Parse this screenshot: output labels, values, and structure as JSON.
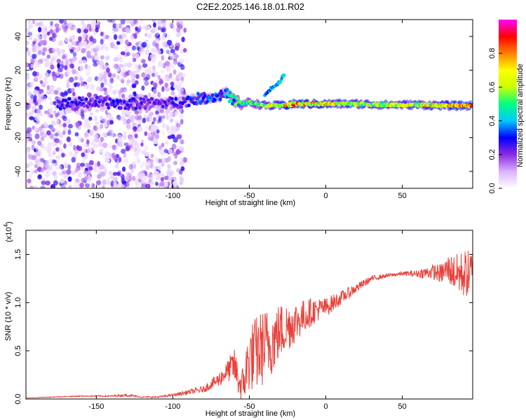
{
  "title": "C2E2.2025.146.18.01.R02",
  "chart_data": [
    {
      "type": "heatmap",
      "xlabel": "Height of straight line (km)",
      "ylabel": "Frequency (Hz)",
      "xlim": [
        -196,
        96
      ],
      "ylim": [
        -50,
        50
      ],
      "xticks": [
        -150,
        -100,
        -50,
        0,
        50
      ],
      "yticks": [
        -40,
        -20,
        0,
        20,
        40
      ],
      "colorbar": {
        "label": "Normalized spectral amplitude",
        "range": [
          0,
          1
        ],
        "ticks": [
          0.0,
          0.2,
          0.4,
          0.6,
          0.8
        ],
        "tick_labels": [
          "0.0",
          "0.2",
          "0.4",
          "0.6",
          "0.8"
        ],
        "colors": [
          "#ffffff",
          "#d9b3ff",
          "#8a2be2",
          "#0000ff",
          "#00c8ff",
          "#00ff80",
          "#c8ff00",
          "#ffff00",
          "#ff8000",
          "#ff0000",
          "#ff00ff"
        ]
      },
      "noise_region_x": [
        -196,
        -92
      ],
      "trace": [
        {
          "x": -170,
          "y": 0.5,
          "amp": 0.3
        },
        {
          "x": -150,
          "y": 1.0,
          "amp": 0.28
        },
        {
          "x": -130,
          "y": 0.0,
          "amp": 0.3
        },
        {
          "x": -110,
          "y": 0.5,
          "amp": 0.25
        },
        {
          "x": -95,
          "y": 1.0,
          "amp": 0.3
        },
        {
          "x": -85,
          "y": 3.0,
          "amp": 0.35
        },
        {
          "x": -75,
          "y": 4.0,
          "amp": 0.4
        },
        {
          "x": -65,
          "y": 6.0,
          "amp": 0.4
        },
        {
          "x": -60,
          "y": 2.0,
          "amp": 0.55
        },
        {
          "x": -55,
          "y": 0.0,
          "amp": 0.6
        },
        {
          "x": -50,
          "y": 1.0,
          "amp": 0.6
        },
        {
          "x": -40,
          "y": -1.0,
          "amp": 0.7
        },
        {
          "x": -30,
          "y": -1.0,
          "amp": 0.8
        },
        {
          "x": -20,
          "y": 0.0,
          "amp": 0.9
        },
        {
          "x": -10,
          "y": 0.0,
          "amp": 0.85
        },
        {
          "x": 0,
          "y": 0.0,
          "amp": 0.8
        },
        {
          "x": 20,
          "y": 0.0,
          "amp": 0.75
        },
        {
          "x": 40,
          "y": -0.5,
          "amp": 0.7
        },
        {
          "x": 60,
          "y": -0.5,
          "amp": 0.75
        },
        {
          "x": 80,
          "y": -1.0,
          "amp": 0.85
        },
        {
          "x": 90,
          "y": -1.0,
          "amp": 0.9
        }
      ],
      "branch": [
        {
          "x": -40,
          "y": 5,
          "amp": 0.45
        },
        {
          "x": -35,
          "y": 10,
          "amp": 0.45
        },
        {
          "x": -30,
          "y": 13,
          "amp": 0.5
        },
        {
          "x": -27,
          "y": 18,
          "amp": 0.5
        }
      ]
    },
    {
      "type": "line",
      "xlabel": "Height of straight line (km)",
      "ylabel": "SNR (10 * v/v)",
      "y_multiplier_label": "(x10",
      "y_multiplier_exp": "4",
      "y_multiplier_close": ")",
      "xlim": [
        -196,
        96
      ],
      "ylim": [
        0,
        17500
      ],
      "xticks": [
        -150,
        -100,
        -50,
        0,
        50
      ],
      "yticks": [
        0,
        5000,
        10000,
        15000
      ],
      "ytick_labels": [
        "0.0",
        "0.5",
        "1.0",
        "1.5"
      ],
      "line_color": "#e8413a",
      "series": [
        {
          "x": [
            -196,
            -180,
            -160,
            -140,
            -130,
            -120,
            -110,
            -100,
            -90,
            -80,
            -75,
            -70,
            -65,
            -60,
            -55,
            -50,
            -45,
            -40,
            -35,
            -30,
            -25,
            -20,
            -15,
            -10,
            -5,
            0,
            5,
            10,
            15,
            20,
            25,
            30,
            40,
            50,
            60,
            70,
            75,
            80,
            85,
            90,
            96
          ],
          "y": [
            100,
            200,
            300,
            300,
            400,
            200,
            200,
            400,
            700,
            1000,
            1500,
            2000,
            2800,
            3500,
            1000,
            4200,
            4800,
            5500,
            6000,
            7000,
            7500,
            8000,
            8500,
            9000,
            9300,
            9500,
            10000,
            10500,
            11000,
            11500,
            12000,
            12500,
            12800,
            13000,
            13000,
            13200,
            13000,
            13500,
            13000,
            13000,
            13000
          ],
          "jitter": [
            0,
            50,
            50,
            80,
            150,
            60,
            80,
            150,
            250,
            350,
            500,
            800,
            1000,
            1800,
            2000,
            3500,
            4000,
            4000,
            3500,
            3000,
            2600,
            2200,
            1800,
            1500,
            1200,
            1000,
            900,
            700,
            600,
            500,
            400,
            300,
            200,
            200,
            400,
            800,
            1000,
            1500,
            2000,
            2500,
            2500
          ]
        }
      ]
    }
  ]
}
